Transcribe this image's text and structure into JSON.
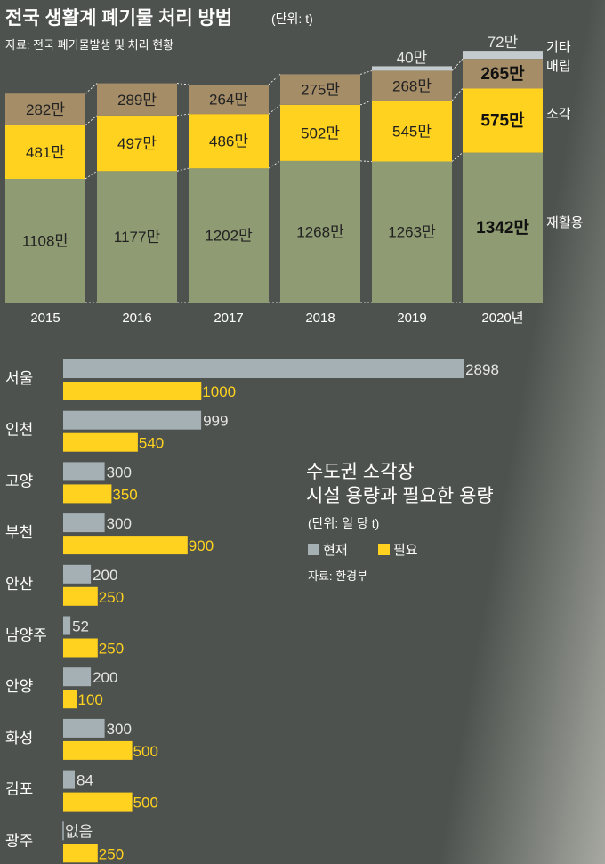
{
  "header": {
    "title": "전국 생활계 폐기물 처리 방법",
    "unit": "(단위: t)",
    "source": "자료: 전국 폐기물발생 및 처리 현황"
  },
  "colors": {
    "recycle": "#8f9b72",
    "incinerate": "#ffd21f",
    "landfill": "#a58d68",
    "other": "#c4cbce",
    "current": "#a5b0b5",
    "required": "#ffd21f",
    "background": "#4d524e"
  },
  "chart_data": [
    {
      "type": "bar",
      "stacked": true,
      "title": "전국 생활계 폐기물 처리 방법",
      "unit": "(단위: t)",
      "categories": [
        "2015",
        "2016",
        "2017",
        "2018",
        "2019",
        "2020년"
      ],
      "series": [
        {
          "name": "재활용",
          "values": [
            1108,
            1177,
            1202,
            1268,
            1263,
            1342
          ],
          "labels": [
            "1108만",
            "1177만",
            "1202만",
            "1268만",
            "1263만",
            "1342만"
          ]
        },
        {
          "name": "소각",
          "values": [
            481,
            497,
            486,
            502,
            545,
            575
          ],
          "labels": [
            "481만",
            "497만",
            "486만",
            "502만",
            "545만",
            "575만"
          ]
        },
        {
          "name": "매립",
          "values": [
            282,
            289,
            264,
            275,
            268,
            265
          ],
          "labels": [
            "282만",
            "289만",
            "264만",
            "275만",
            "268만",
            "265만"
          ]
        },
        {
          "name": "기타",
          "values": [
            null,
            null,
            null,
            null,
            40,
            72
          ],
          "labels": [
            "",
            "",
            "",
            "",
            "40만",
            "72만"
          ]
        }
      ]
    },
    {
      "type": "bar",
      "orientation": "horizontal",
      "title": "수도권 소각장 시설 용량과 필요한 용량",
      "unit": "(단위: 일 당 t)",
      "categories": [
        "서울",
        "인천",
        "고양",
        "부천",
        "안산",
        "남양주",
        "안양",
        "화성",
        "김포",
        "광주"
      ],
      "series": [
        {
          "name": "현재",
          "values": [
            2898,
            999,
            300,
            300,
            200,
            52,
            200,
            300,
            84,
            0
          ],
          "labels": [
            "2898",
            "999",
            "300",
            "300",
            "200",
            "52",
            "200",
            "300",
            "84",
            "없음"
          ]
        },
        {
          "name": "필요",
          "values": [
            1000,
            540,
            350,
            900,
            250,
            250,
            100,
            500,
            500,
            250
          ],
          "labels": [
            "1000",
            "540",
            "350",
            "900",
            "250",
            "250",
            "100",
            "500",
            "500",
            "250"
          ]
        }
      ],
      "source": "자료: 환경부"
    }
  ]
}
